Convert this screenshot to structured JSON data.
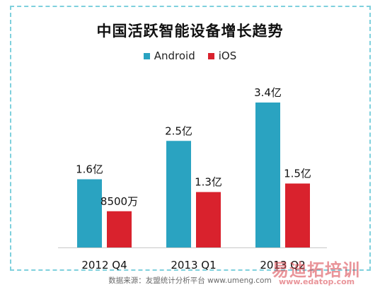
{
  "chart_data": {
    "type": "bar",
    "title": "中国活跃智能设备增长趋势",
    "categories": [
      "2012 Q4",
      "2013 Q1",
      "2013 Q2"
    ],
    "series": [
      {
        "name": "Android",
        "color": "#2aa3c1",
        "values": [
          1.6,
          2.5,
          3.4
        ],
        "labels": [
          "1.6亿",
          "2.5亿",
          "3.4亿"
        ]
      },
      {
        "name": "iOS",
        "color": "#d9222d",
        "values": [
          0.85,
          1.3,
          1.5
        ],
        "labels": [
          "8500万",
          "1.3亿",
          "1.5亿"
        ]
      }
    ],
    "units": "亿",
    "ylim": [
      0,
      3.4
    ],
    "grid": false,
    "legend_position": "top-center"
  },
  "source": "数据来源：友盟统计分析平台 www.umeng.com",
  "watermark": {
    "text": "易迪拓培训",
    "url": "www.edatop.com"
  }
}
